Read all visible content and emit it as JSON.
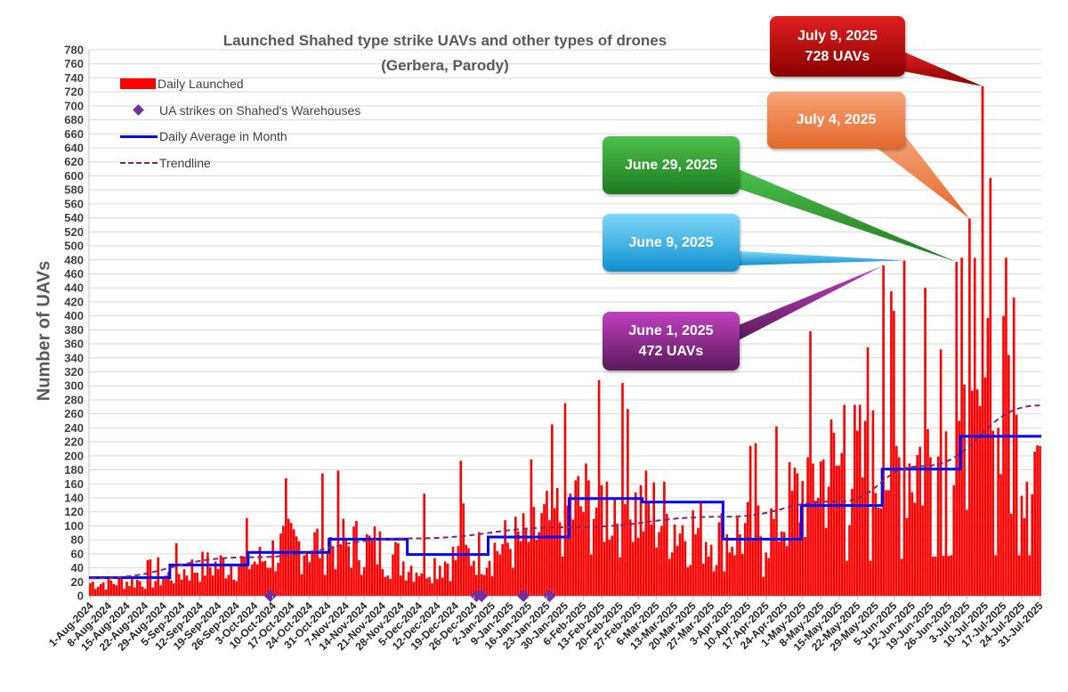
{
  "chart_data": {
    "type": "bar",
    "title": "Launched Shahed type strike UAVs and other types of drones",
    "subtitle": "(Gerbera, Parody)",
    "ylabel": "Number of UAVs",
    "xlabel": "",
    "ylim": [
      0,
      780
    ],
    "ytick_step": 20,
    "grid": true,
    "legend_position": "top-left",
    "legend": [
      "Daily Launched",
      "UA strikes on Shahed's Warehouses",
      "Daily Average in Month",
      "Trendline"
    ],
    "x_start": "2024-08-01",
    "x_end": "2025-07-31",
    "x_ticks": [
      "1-Aug-2024",
      "8-Aug-2024",
      "15-Aug-2024",
      "22-Aug-2024",
      "29-Aug-2024",
      "5-Sep-2024",
      "12-Sep-2024",
      "19-Sep-2024",
      "26-Sep-2024",
      "3-Oct-2024",
      "10-Oct-2024",
      "17-Oct-2024",
      "24-Oct-2024",
      "31-Oct-2024",
      "7-Nov-2024",
      "14-Nov-2024",
      "21-Nov-2024",
      "28-Nov-2024",
      "5-Dec-2024",
      "12-Dec-2024",
      "19-Dec-2024",
      "26-Dec-2024",
      "2-Jan-2025",
      "9-Jan-2025",
      "16-Jan-2025",
      "23-Jan-2025",
      "30-Jan-2025",
      "6-Feb-2025",
      "13-Feb-2025",
      "20-Feb-2025",
      "27-Feb-2025",
      "6-Mar-2025",
      "13-Mar-2025",
      "20-Mar-2025",
      "27-Mar-2025",
      "3-Apr-2025",
      "10-Apr-2025",
      "17-Apr-2025",
      "24-Apr-2025",
      "1-May-2025",
      "8-May-2025",
      "15-May-2025",
      "22-May-2025",
      "29-May-2025",
      "5-Jun-2025",
      "12-Jun-2025",
      "19-Jun-2025",
      "26-Jun-2025",
      "3-Jul-2025",
      "10-Jul-2025",
      "17-Jul-2025",
      "24-Jul-2025",
      "31-Jul-2025"
    ],
    "monthly_average": [
      {
        "month": "2024-08",
        "value": 26
      },
      {
        "month": "2024-09",
        "value": 44
      },
      {
        "month": "2024-10",
        "value": 62
      },
      {
        "month": "2024-11",
        "value": 81
      },
      {
        "month": "2024-12",
        "value": 59
      },
      {
        "month": "2025-01",
        "value": 84
      },
      {
        "month": "2025-02",
        "value": 139
      },
      {
        "month": "2025-03",
        "value": 134
      },
      {
        "month": "2025-04",
        "value": 81
      },
      {
        "month": "2025-05",
        "value": 129
      },
      {
        "month": "2025-06",
        "value": 181
      },
      {
        "month": "2025-07",
        "value": 228
      }
    ],
    "warehouse_strikes": [
      "2024-10-09",
      "2024-12-27",
      "2024-12-29",
      "2025-01-14",
      "2025-01-24"
    ],
    "trendline": [
      {
        "date": "2024-08-01",
        "value": 25
      },
      {
        "date": "2024-10-01",
        "value": 55
      },
      {
        "date": "2024-12-01",
        "value": 82
      },
      {
        "date": "2025-02-01",
        "value": 98
      },
      {
        "date": "2025-04-01",
        "value": 113
      },
      {
        "date": "2025-05-15",
        "value": 135
      },
      {
        "date": "2025-06-15",
        "value": 185
      },
      {
        "date": "2025-07-31",
        "value": 272
      }
    ],
    "highlighted_days": [
      {
        "date": "2025-06-01",
        "value": 472
      },
      {
        "date": "2025-06-09",
        "value": 479
      },
      {
        "date": "2025-06-29",
        "value": 477
      },
      {
        "date": "2025-07-04",
        "value": 539
      },
      {
        "date": "2025-07-09",
        "value": 728
      }
    ],
    "daily_launched": [
      {
        "date": "2025-06-01",
        "value": 472
      },
      {
        "date": "2025-06-09",
        "value": 479
      },
      {
        "date": "2025-06-29",
        "value": 477
      },
      {
        "date": "2025-07-04",
        "value": 539
      },
      {
        "date": "2025-07-09",
        "value": 728
      },
      {
        "date": "2025-07-12",
        "value": 597
      },
      {
        "date": "2025-06-05",
        "value": 407
      },
      {
        "date": "2025-06-17",
        "value": 440
      },
      {
        "date": "2025-06-23",
        "value": 352
      },
      {
        "date": "2025-07-11",
        "value": 397
      },
      {
        "date": "2025-07-21",
        "value": 426
      },
      {
        "date": "2025-07-17",
        "value": 400
      },
      {
        "date": "2025-07-19",
        "value": 344
      },
      {
        "date": "2025-05-26",
        "value": 355
      },
      {
        "date": "2025-05-25",
        "value": 250
      },
      {
        "date": "2025-05-17",
        "value": 273
      },
      {
        "date": "2025-02-23",
        "value": 267
      },
      {
        "date": "2024-12-21",
        "value": 193
      },
      {
        "date": "2024-12-07",
        "value": 146
      }
    ]
  },
  "callouts": [
    {
      "line1": "July 9, 2025",
      "line2": "728 UAVs",
      "color": "#c00000"
    },
    {
      "line1": "July 4, 2025",
      "line2": "",
      "color": "#f08040"
    },
    {
      "line1": "June 29, 2025",
      "line2": "",
      "color": "#2e9a2e"
    },
    {
      "line1": "June 9, 2025",
      "line2": "",
      "color": "#1fa8e0"
    },
    {
      "line1": "June 1, 2025",
      "line2": "472 UAVs",
      "color": "#9b2f9b"
    }
  ]
}
